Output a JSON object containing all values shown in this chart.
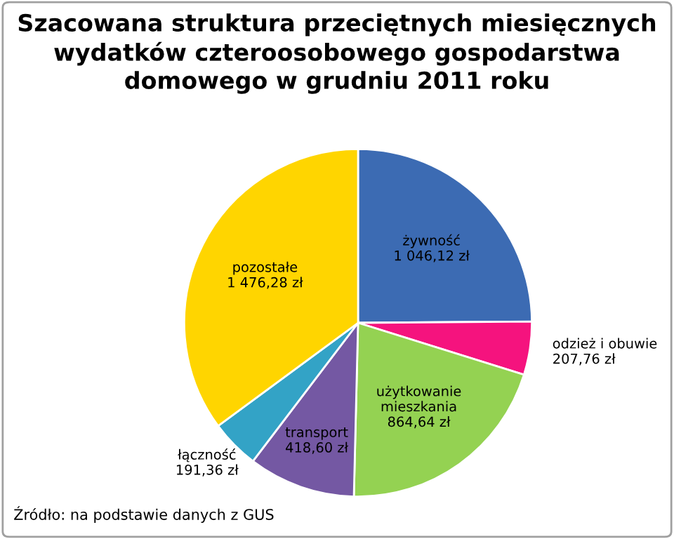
{
  "chart_data": {
    "type": "pie",
    "title": "Szacowana struktura przeciętnych miesięcznych\nwydatków czteroosobowego gospodarstwa\ndomowego w grudniu 2011 roku",
    "categories": [
      "żywność",
      "odzież i obuwie",
      "użytkowanie\nmieszkania",
      "transport",
      "łączność",
      "pozostałe"
    ],
    "values": [
      1046.12,
      207.76,
      864.64,
      418.6,
      191.36,
      1476.28
    ],
    "value_labels": [
      "1 046,12 zł",
      "207,76 zł",
      "864,64 zł",
      "418,60 zł",
      "191,36 zł",
      "1 476,28 zł"
    ],
    "colors": [
      "#3c6bb3",
      "#f5137e",
      "#94d252",
      "#7458a3",
      "#33a3c6",
      "#ffd500"
    ],
    "annotations": [
      "Źródło: na podstawie danych z GUS"
    ]
  }
}
